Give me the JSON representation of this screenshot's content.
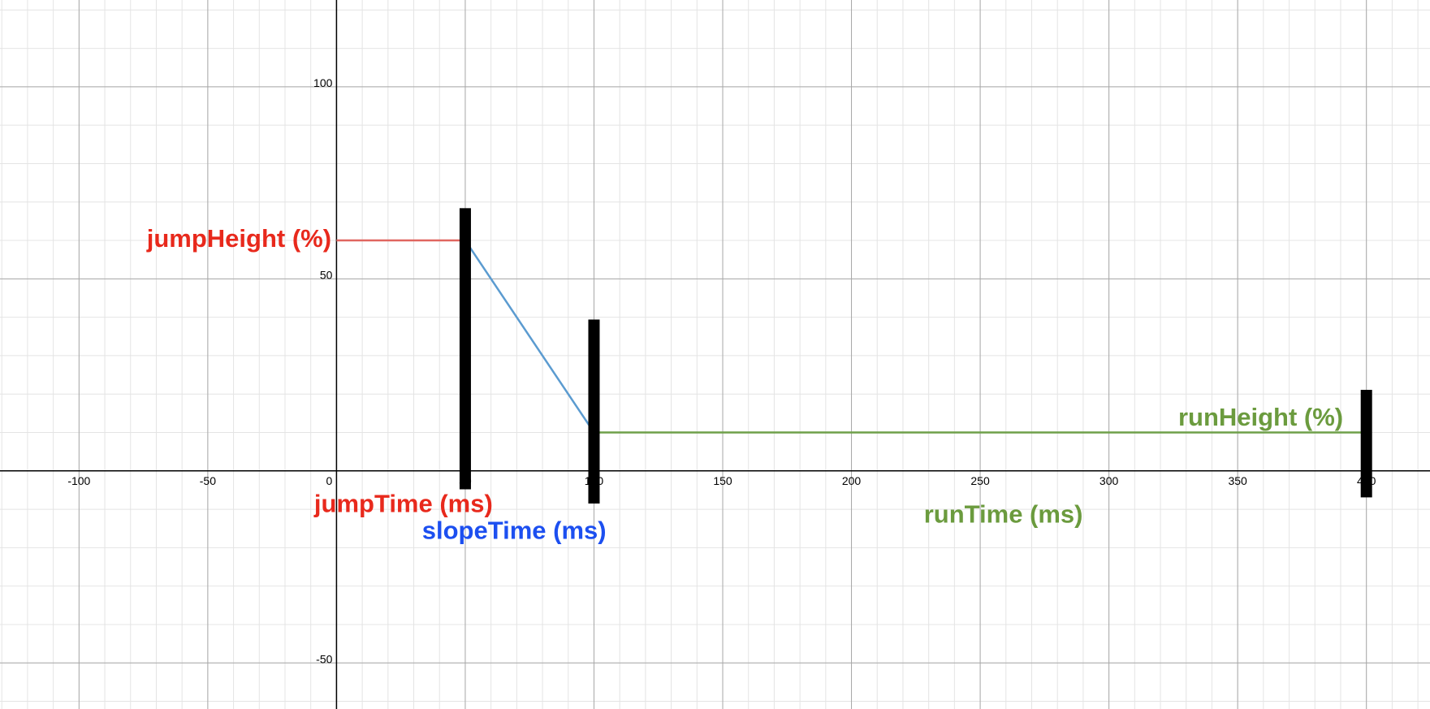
{
  "chart_data": {
    "type": "line",
    "xlim": [
      -130.7,
      424.7
    ],
    "ylim": [
      -62,
      122.6
    ],
    "xticks": [
      -100,
      -50,
      0,
      50,
      100,
      150,
      200,
      250,
      300,
      350,
      400
    ],
    "yticks": [
      -50,
      50,
      100
    ],
    "grid": true,
    "series": [
      {
        "color": "#e06660",
        "x": [
          0,
          50
        ],
        "values": [
          60,
          60
        ]
      },
      {
        "color": "#5b9bd0",
        "x": [
          50,
          100
        ],
        "values": [
          60,
          10
        ]
      },
      {
        "color": "#6fa04a",
        "x": [
          100,
          400
        ],
        "values": [
          10,
          10
        ]
      }
    ],
    "handles": [
      {
        "x": 50,
        "y0": 68.4,
        "y1": -4.8
      },
      {
        "x": 100,
        "y0": 39.4,
        "y1": -8.5
      },
      {
        "x": 400,
        "y0": 21.1,
        "y1": -6.9
      }
    ],
    "annotations": [
      {
        "text": "jumpHeight (%)",
        "color": "#e8291c"
      },
      {
        "text": "jumpTime (ms)",
        "color": "#e8291c"
      },
      {
        "text": "slopeTime (ms)",
        "color": "#1c4ff0"
      },
      {
        "text": "runTime (ms)",
        "color": "#6b9b3e"
      },
      {
        "text": "runHeight (%)",
        "color": "#6b9b3e"
      }
    ]
  }
}
